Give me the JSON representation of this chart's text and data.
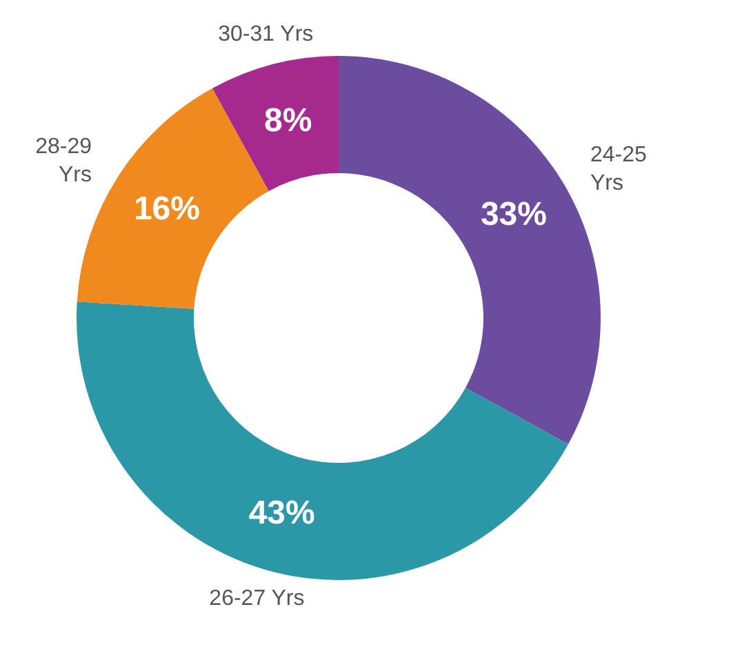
{
  "chart_data": {
    "type": "donut",
    "categories": [
      "24-25 Yrs",
      "26-27 Yrs",
      "28-29 Yrs",
      "30-31 Yrs"
    ],
    "values": [
      33,
      43,
      16,
      8
    ],
    "colors": [
      "#6b4c9f",
      "#2a98a6",
      "#f08a1e",
      "#a62a8e"
    ],
    "value_labels": [
      "33%",
      "43%",
      "16%",
      "8%"
    ]
  }
}
